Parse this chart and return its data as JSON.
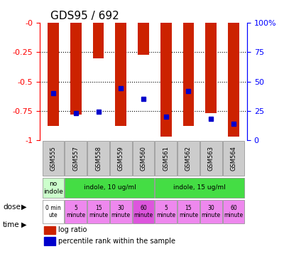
{
  "title": "GDS95 / 692",
  "samples": [
    "GSM555",
    "GSM557",
    "GSM558",
    "GSM559",
    "GSM560",
    "GSM561",
    "GSM562",
    "GSM563",
    "GSM564"
  ],
  "log_ratios": [
    -0.88,
    -0.78,
    -0.3,
    -0.88,
    -0.27,
    -0.97,
    -0.88,
    -0.77,
    -0.97
  ],
  "percentile_ranks": [
    40,
    23,
    24,
    44,
    35,
    20,
    42,
    18,
    14
  ],
  "ylim": [
    -1.0,
    0.0
  ],
  "yticks": [
    0,
    -0.25,
    -0.5,
    -0.75,
    -1.0
  ],
  "ytick_labels": [
    "-0",
    "-0.25",
    "-0.5",
    "-0.75",
    "-1"
  ],
  "right_yticks": [
    0,
    25,
    50,
    75,
    100
  ],
  "right_ytick_labels": [
    "0",
    "25",
    "50",
    "75",
    "100%"
  ],
  "bar_color": "#cc2200",
  "percentile_color": "#0000cc",
  "dose_row": [
    {
      "label": "no\nindole",
      "color": "#ccffcc",
      "span": [
        0,
        1
      ]
    },
    {
      "label": "indole, 10 ug/ml",
      "color": "#44dd44",
      "span": [
        1,
        5
      ]
    },
    {
      "label": "indole, 15 ug/ml",
      "color": "#44dd44",
      "span": [
        5,
        9
      ]
    }
  ],
  "time_row": [
    {
      "label": "0 min\nute",
      "color": "#ffffff",
      "span": [
        0,
        1
      ]
    },
    {
      "label": "5\nminute",
      "color": "#ee88ee",
      "span": [
        1,
        2
      ]
    },
    {
      "label": "15\nminute",
      "color": "#ee88ee",
      "span": [
        2,
        3
      ]
    },
    {
      "label": "30\nminute",
      "color": "#ee88ee",
      "span": [
        3,
        4
      ]
    },
    {
      "label": "60\nminute",
      "color": "#dd55dd",
      "span": [
        4,
        5
      ]
    },
    {
      "label": "5\nminute",
      "color": "#ee88ee",
      "span": [
        5,
        6
      ]
    },
    {
      "label": "15\nminute",
      "color": "#ee88ee",
      "span": [
        6,
        7
      ]
    },
    {
      "label": "30\nminute",
      "color": "#ee88ee",
      "span": [
        7,
        8
      ]
    },
    {
      "label": "60\nminute",
      "color": "#ee88ee",
      "span": [
        8,
        9
      ]
    }
  ],
  "x_tick_bg": "#cccccc",
  "legend_red_label": "log ratio",
  "legend_blue_label": "percentile rank within the sample",
  "bar_width": 0.5
}
